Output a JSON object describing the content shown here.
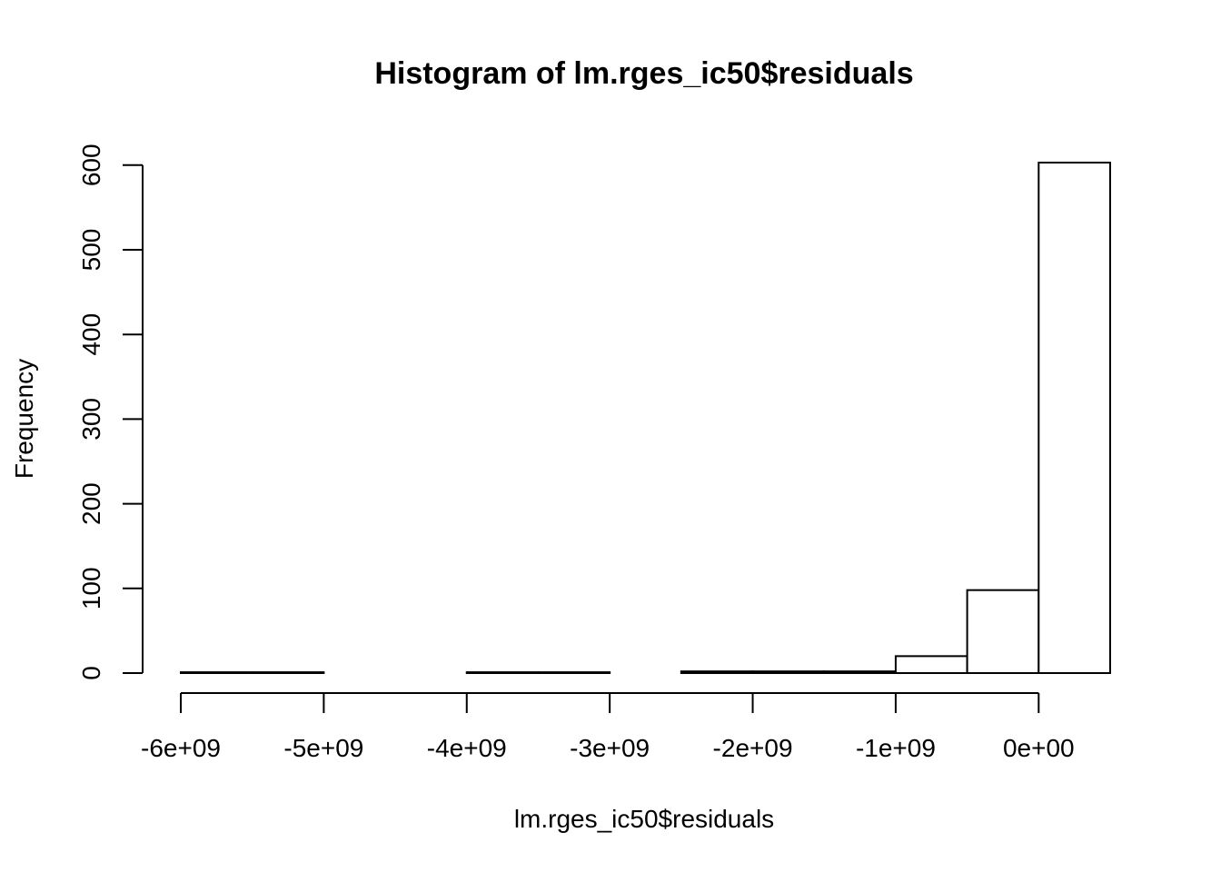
{
  "chart_data": {
    "type": "bar",
    "title": "Histogram of lm.rges_ic50$residuals",
    "xlabel": "lm.rges_ic50$residuals",
    "ylabel": "Frequency",
    "bin_edges": [
      -6000000000,
      -5500000000,
      -5000000000,
      -4500000000,
      -4000000000,
      -3500000000,
      -3000000000,
      -2500000000,
      -2000000000,
      -1500000000,
      -1000000000,
      -500000000,
      0,
      500000000
    ],
    "values": [
      1,
      1,
      0,
      0,
      1,
      1,
      0,
      2,
      2,
      2,
      20,
      98,
      603
    ],
    "x_ticks": [
      -6000000000,
      -5000000000,
      -4000000000,
      -3000000000,
      -2000000000,
      -1000000000,
      0
    ],
    "x_tick_labels": [
      "-6e+09",
      "-5e+09",
      "-4e+09",
      "-3e+09",
      "-2e+09",
      "-1e+09",
      "0e+00"
    ],
    "y_ticks": [
      0,
      100,
      200,
      300,
      400,
      500,
      600
    ],
    "y_tick_labels": [
      "0",
      "100",
      "200",
      "300",
      "400",
      "500",
      "600"
    ],
    "xlim": [
      -6000000000,
      500000000
    ],
    "ylim": [
      0,
      603
    ],
    "grid": false
  }
}
